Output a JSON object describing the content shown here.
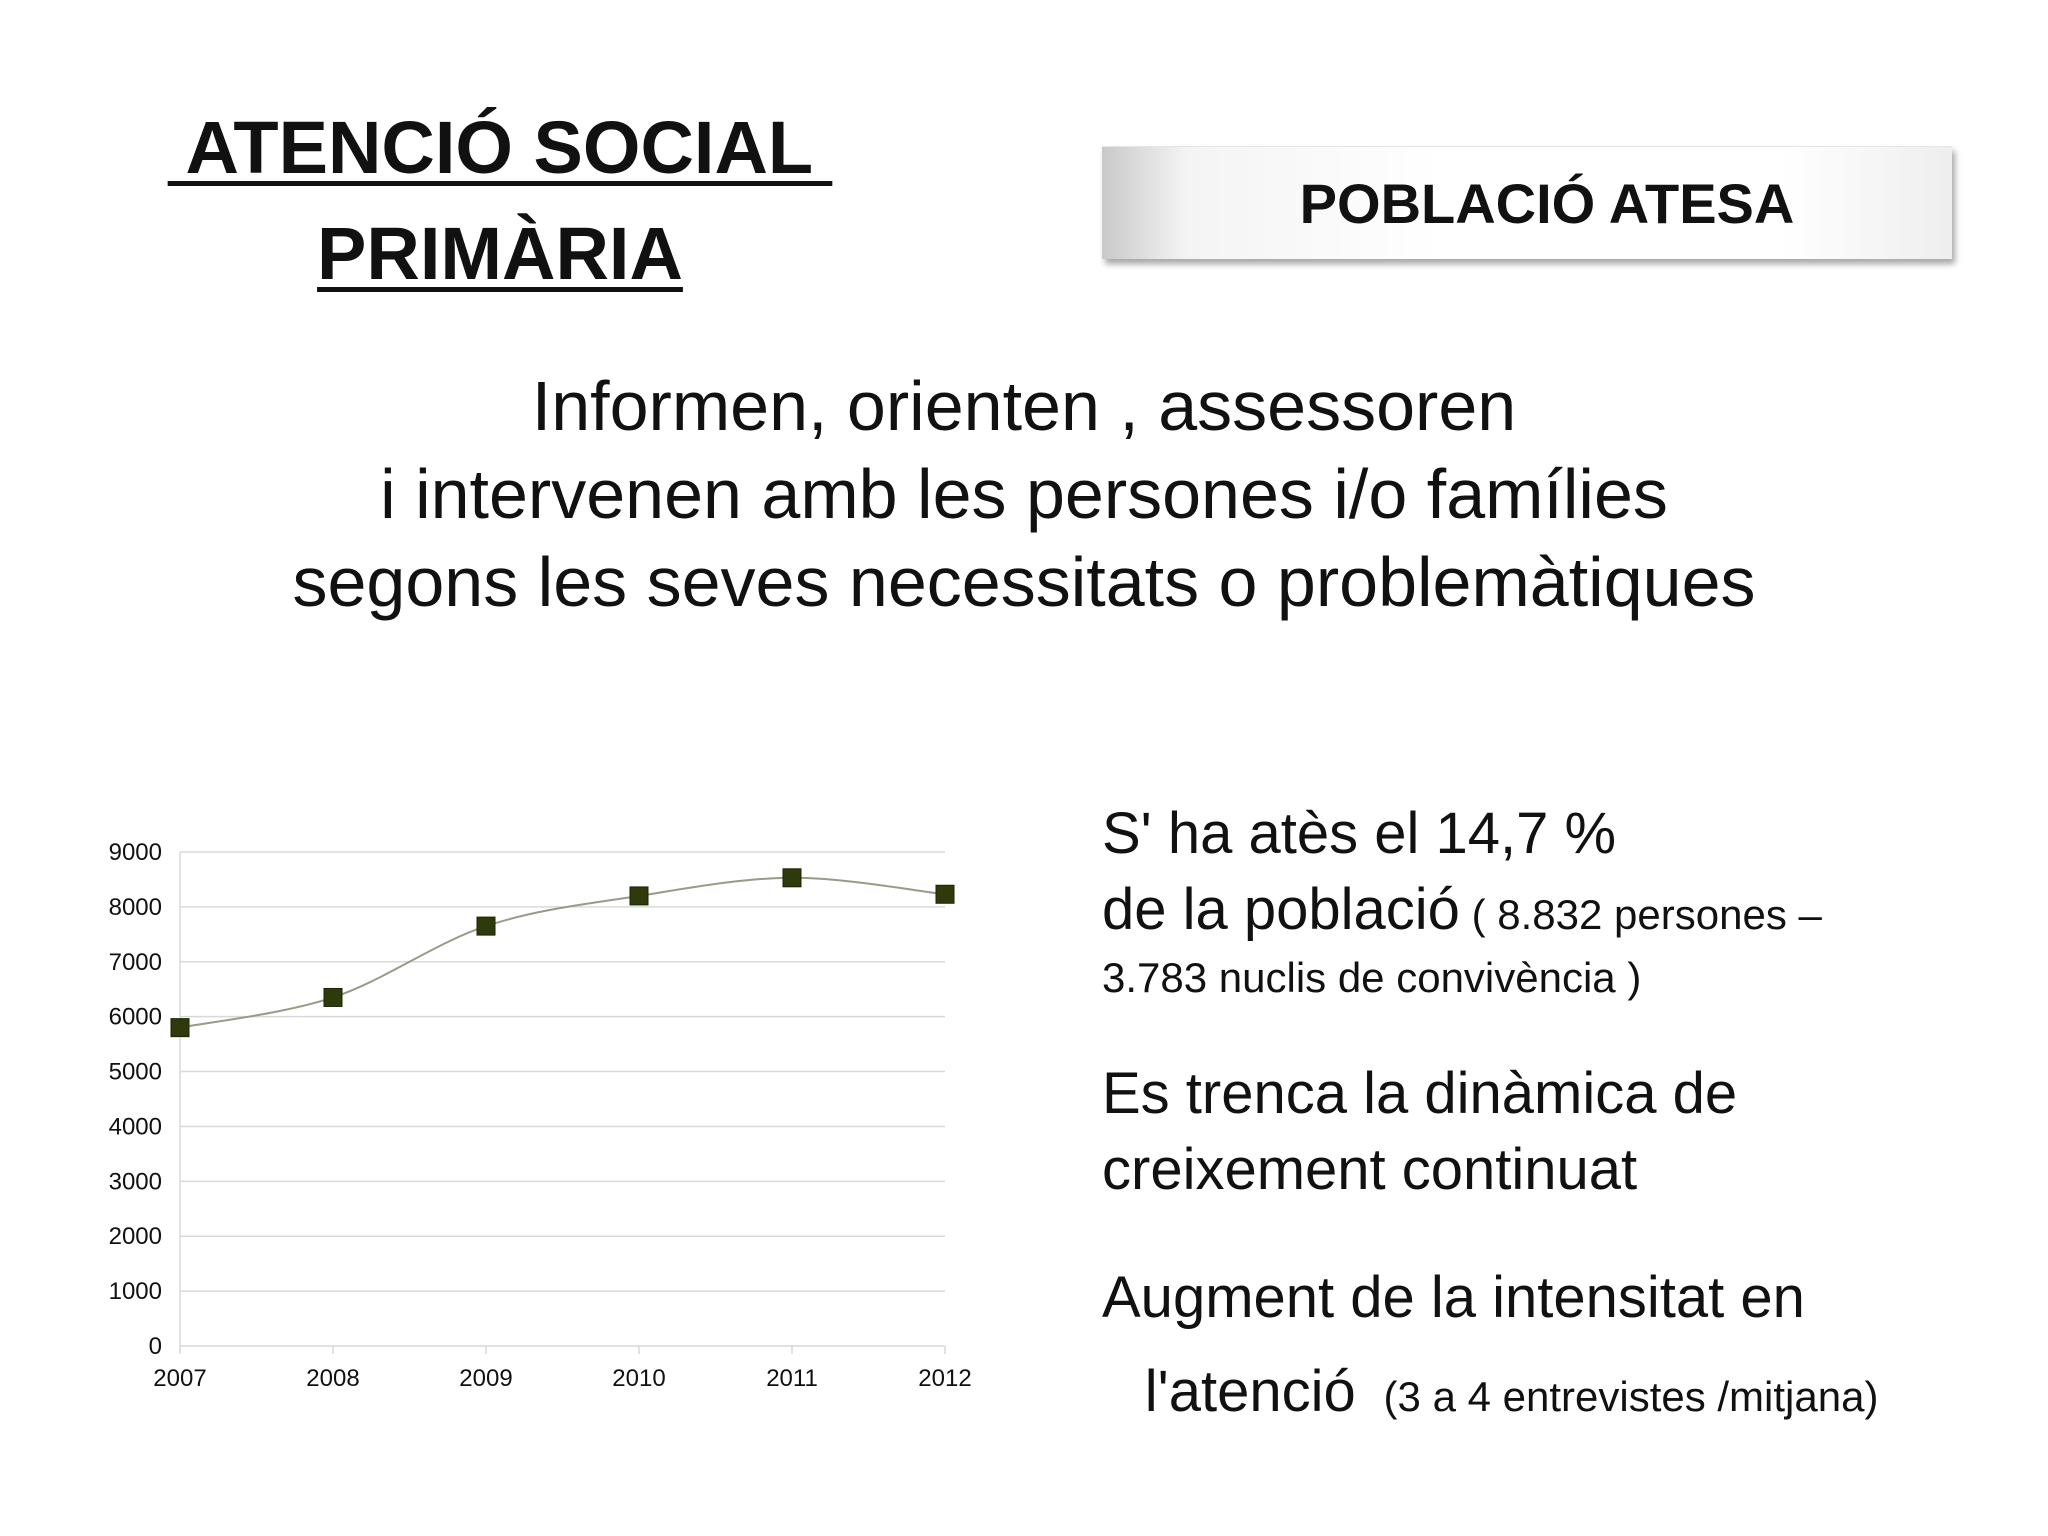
{
  "header": {
    "title_line1": " ATENCIÓ SOCIAL ",
    "title_line2": "PRIMÀRIA",
    "banner_label": "POBLACIÓ ATESA"
  },
  "intro": {
    "line1": "Informen, orienten , assessoren",
    "line2": "i intervenen amb les persones i/o famílies",
    "line3": "segons les seves necessitats o problemàtiques"
  },
  "notes": {
    "n1_big_a": "S' ha atès el 14,7 %",
    "n1_big_b": "de la població",
    "n1_small_a": " ( 8.832 persones –",
    "n1_small_b": "3.783 nuclis de convivència )",
    "n2_a": "Es trenca la dinàmica de",
    "n2_b": "creixement continuat",
    "n3_a": "Augment de la intensitat en",
    "n3_b": " l'atenció ",
    "n3_small": " (3 a 4 entrevistes /mitjana)"
  },
  "colors": {
    "marker": "#2f3a0c",
    "line": "#9a9a86",
    "grid": "#d9d9d9"
  },
  "chart_data": {
    "type": "line",
    "categories": [
      "2007",
      "2008",
      "2009",
      "2010",
      "2011",
      "2012"
    ],
    "series": [
      {
        "values": [
          5800,
          6350,
          7650,
          8200,
          8530,
          8230
        ]
      }
    ],
    "y_ticks": [
      "0",
      "1000",
      "2000",
      "3000",
      "4000",
      "5000",
      "6000",
      "7000",
      "8000",
      "9000"
    ],
    "ylim": [
      0,
      9000
    ],
    "grid": true,
    "legend": "none",
    "smooth": true,
    "marker": "square"
  }
}
